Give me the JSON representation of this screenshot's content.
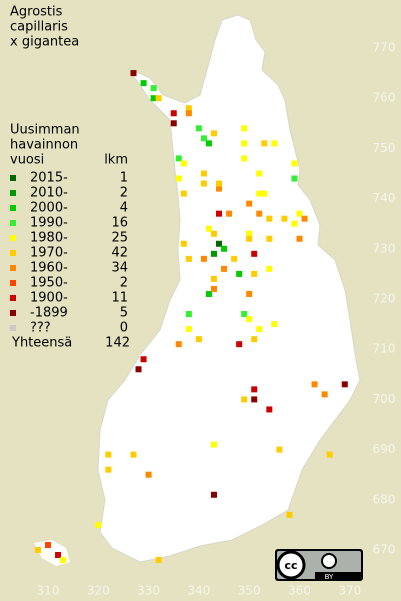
{
  "title": [
    "Agrostis",
    "capillaris",
    "x gigantea"
  ],
  "legend": {
    "title": [
      "Uusimman",
      "havainnon",
      "vuosi"
    ],
    "count_header": "lkm",
    "rows": [
      {
        "label": "2015-",
        "count": 1,
        "color": "#006600"
      },
      {
        "label": "2010-",
        "count": 2,
        "color": "#009900"
      },
      {
        "label": "2000-",
        "count": 4,
        "color": "#00cc00"
      },
      {
        "label": "1990-",
        "count": 16,
        "color": "#33ee33"
      },
      {
        "label": "1980-",
        "count": 25,
        "color": "#ffff00"
      },
      {
        "label": "1970-",
        "count": 42,
        "color": "#ffcc00"
      },
      {
        "label": "1960-",
        "count": 34,
        "color": "#ff8800"
      },
      {
        "label": "1950-",
        "count": 2,
        "color": "#ff4400"
      },
      {
        "label": "1900-",
        "count": 11,
        "color": "#cc0000"
      },
      {
        "label": "-1899",
        "count": 5,
        "color": "#880000"
      },
      {
        "label": "???",
        "count": 0,
        "color": "#c8c8c8"
      }
    ],
    "total_label": "Yhteensä",
    "total": 142
  },
  "eticks": [
    310,
    320,
    330,
    340,
    350,
    360,
    370
  ],
  "nticks": [
    670,
    680,
    690,
    700,
    710,
    720,
    730,
    740,
    750,
    760,
    770
  ],
  "license": "BY",
  "observations": [
    [
      327,
      765,
      9
    ],
    [
      329,
      763,
      2
    ],
    [
      331,
      762,
      3
    ],
    [
      331,
      760,
      2
    ],
    [
      332,
      760,
      5
    ],
    [
      335,
      757,
      8
    ],
    [
      335,
      755,
      9
    ],
    [
      338,
      758,
      5
    ],
    [
      338,
      757,
      6
    ],
    [
      340,
      754,
      3
    ],
    [
      341,
      752,
      3
    ],
    [
      342,
      751,
      2
    ],
    [
      343,
      753,
      5
    ],
    [
      349,
      754,
      4
    ],
    [
      349,
      748,
      4
    ],
    [
      349,
      751,
      4
    ],
    [
      353,
      751,
      5
    ],
    [
      355,
      751,
      4
    ],
    [
      359,
      747,
      4
    ],
    [
      359,
      744,
      3
    ],
    [
      336,
      748,
      3
    ],
    [
      337,
      747,
      4
    ],
    [
      336,
      744,
      4
    ],
    [
      341,
      745,
      5
    ],
    [
      341,
      743,
      5
    ],
    [
      344,
      742,
      6
    ],
    [
      344,
      743,
      5
    ],
    [
      352,
      745,
      4
    ],
    [
      352,
      741,
      4
    ],
    [
      353,
      741,
      4
    ],
    [
      350,
      739,
      6
    ],
    [
      337,
      741,
      5
    ],
    [
      344,
      737,
      8
    ],
    [
      346,
      737,
      6
    ],
    [
      352,
      737,
      6
    ],
    [
      354,
      736,
      5
    ],
    [
      357,
      736,
      5
    ],
    [
      360,
      737,
      4
    ],
    [
      361,
      736,
      6
    ],
    [
      342,
      734,
      4
    ],
    [
      343,
      733,
      5
    ],
    [
      344,
      731,
      0
    ],
    [
      345,
      730,
      2
    ],
    [
      350,
      733,
      4
    ],
    [
      350,
      732,
      5
    ],
    [
      354,
      732,
      5
    ],
    [
      360,
      732,
      6
    ],
    [
      359,
      735,
      4
    ],
    [
      337,
      731,
      5
    ],
    [
      338,
      728,
      5
    ],
    [
      341,
      728,
      6
    ],
    [
      343,
      729,
      1
    ],
    [
      347,
      728,
      5
    ],
    [
      345,
      726,
      6
    ],
    [
      348,
      725,
      2
    ],
    [
      351,
      725,
      5
    ],
    [
      354,
      726,
      4
    ],
    [
      351,
      729,
      8
    ],
    [
      343,
      724,
      5
    ],
    [
      342,
      721,
      2
    ],
    [
      343,
      722,
      6
    ],
    [
      350,
      721,
      6
    ],
    [
      338,
      717,
      3
    ],
    [
      338,
      714,
      4
    ],
    [
      340,
      712,
      5
    ],
    [
      349,
      717,
      3
    ],
    [
      350,
      716,
      4
    ],
    [
      352,
      714,
      4
    ],
    [
      355,
      715,
      4
    ],
    [
      336,
      711,
      6
    ],
    [
      348,
      711,
      8
    ],
    [
      351,
      712,
      5
    ],
    [
      329,
      708,
      8
    ],
    [
      328,
      706,
      9
    ],
    [
      363,
      703,
      6
    ],
    [
      369,
      703,
      9
    ],
    [
      351,
      702,
      8
    ],
    [
      351,
      700,
      9
    ],
    [
      349,
      700,
      5
    ],
    [
      354,
      698,
      8
    ],
    [
      365,
      701,
      6
    ],
    [
      322,
      689,
      5
    ],
    [
      322,
      686,
      5
    ],
    [
      327,
      689,
      5
    ],
    [
      343,
      691,
      4
    ],
    [
      356,
      690,
      5
    ],
    [
      366,
      689,
      5
    ],
    [
      343,
      681,
      9
    ],
    [
      320,
      675,
      4
    ],
    [
      308,
      670,
      5
    ],
    [
      310,
      671,
      7
    ],
    [
      312,
      669,
      8
    ],
    [
      313,
      668,
      4
    ],
    [
      332,
      668,
      5
    ],
    [
      358,
      677,
      5
    ],
    [
      330,
      685,
      6
    ]
  ]
}
